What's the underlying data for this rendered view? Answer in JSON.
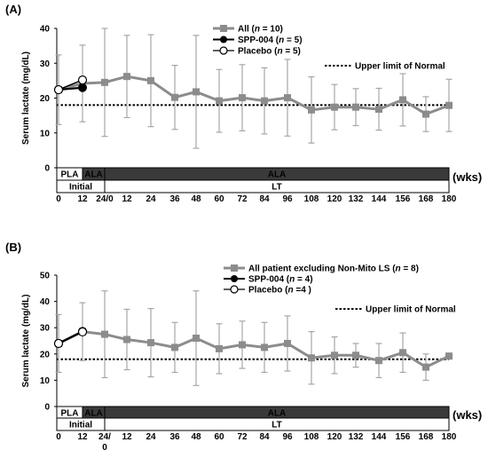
{
  "chart_data": [
    {
      "type": "line",
      "panel_label": "(A)",
      "ylabel": "Serum lactate (mg/dL)",
      "xunit": "(wks)",
      "ylim": [
        0,
        40
      ],
      "yticks": [
        "0",
        "10",
        "20",
        "30",
        "40"
      ],
      "upper_limit_normal": 18,
      "xtick_labels": [
        "0",
        "12",
        "24/0",
        "12",
        "24",
        "36",
        "48",
        "60",
        "72",
        "84",
        "96",
        "108",
        "120",
        "132",
        "144",
        "156",
        "168",
        "180"
      ],
      "bars": {
        "row1": [
          {
            "label": "PLA",
            "style": "light"
          },
          {
            "label": "ALA",
            "style": "dark"
          },
          {
            "label": "ALA",
            "style": "dark"
          }
        ],
        "row2": [
          {
            "label": "Initial"
          },
          {
            "label": "LT"
          }
        ]
      },
      "legend": [
        {
          "label": "All (n = 10)",
          "prefix": "All (",
          "n": "n",
          "suffix": " = 10)"
        },
        {
          "label": "SPP-004 (n = 5)",
          "prefix": "SPP-004 (",
          "n": "n",
          "suffix": " = 5)"
        },
        {
          "label": "Placebo (n = 5)",
          "prefix": "Placebo (",
          "n": "n",
          "suffix": " = 5)"
        },
        {
          "label": "Upper limit of Normal"
        }
      ],
      "series": [
        {
          "name": "All (n = 10)",
          "color": "#8c8c8c",
          "marker": "square",
          "values": [
            22.4,
            24.2,
            24.5,
            26.2,
            25,
            20.2,
            21.8,
            19.2,
            20.1,
            19.2,
            20.1,
            16.6,
            17.4,
            17.4,
            16.8,
            19.5,
            15.4,
            17.9
          ],
          "err": [
            10,
            11,
            15.5,
            11.8,
            13.2,
            9.2,
            16.2,
            9,
            9.5,
            9.5,
            11,
            9.5,
            6.5,
            5.3,
            6,
            7.5,
            5,
            7.5
          ]
        },
        {
          "name": "SPP-004 (n = 5)",
          "color": "#000000",
          "marker": "filled-circle",
          "values": [
            22.4,
            23.0
          ]
        },
        {
          "name": "Placebo (n = 5)",
          "color": "#000000",
          "marker": "open-circle",
          "values": [
            22.4,
            25.2
          ]
        }
      ]
    },
    {
      "type": "line",
      "panel_label": "(B)",
      "ylabel": "Serum lactate (mg/dL)",
      "xunit": "(wks)",
      "ylim": [
        0,
        50
      ],
      "yticks": [
        "0",
        "10",
        "20",
        "30",
        "40",
        "50"
      ],
      "upper_limit_normal": 18,
      "xtick_labels": [
        "0",
        "12",
        "24/\n0",
        "12",
        "24",
        "36",
        "48",
        "60",
        "72",
        "84",
        "96",
        "108",
        "120",
        "132",
        "144",
        "156",
        "168",
        "180"
      ],
      "bars": {
        "row1": [
          {
            "label": "PLA",
            "style": "light"
          },
          {
            "label": "ALA",
            "style": "dark"
          },
          {
            "label": "ALA",
            "style": "dark"
          }
        ],
        "row2": [
          {
            "label": "Initial"
          },
          {
            "label": "LT"
          }
        ]
      },
      "legend": [
        {
          "label": "All patient excluding Non-Mito LS (n = 8)",
          "prefix": "All patient excluding Non-Mito LS (",
          "n": "n",
          "suffix": " = 8)"
        },
        {
          "label": "SPP-004 (n = 4)",
          "prefix": "SPP-004 (",
          "n": "n",
          "suffix": " = 4)"
        },
        {
          "label": "Placebo (n =4 )",
          "prefix": "Placebo (",
          "n": "n",
          "suffix": " =4 )"
        },
        {
          "label": "Upper limit of Normal"
        }
      ],
      "series": [
        {
          "name": "All patient excluding Non-Mito LS (n = 8)",
          "color": "#8c8c8c",
          "marker": "square",
          "values": [
            24,
            28.5,
            27.5,
            25.5,
            24.3,
            22.5,
            26,
            22,
            23.5,
            22.5,
            24,
            18.5,
            19.5,
            19.5,
            17.5,
            20.5,
            15,
            19.2
          ],
          "err": [
            11,
            11,
            16.5,
            11.5,
            13,
            9.5,
            18,
            9.5,
            9,
            9.5,
            10.5,
            10,
            7,
            4.5,
            6.5,
            7.5,
            5,
            0
          ]
        },
        {
          "name": "SPP-004 (n = 4)",
          "color": "#000000",
          "marker": "filled-circle",
          "values": [
            24,
            28.6
          ]
        },
        {
          "name": "Placebo (n =4 )",
          "color": "#000000",
          "marker": "open-circle",
          "values": [
            24,
            28.4
          ]
        }
      ]
    }
  ]
}
